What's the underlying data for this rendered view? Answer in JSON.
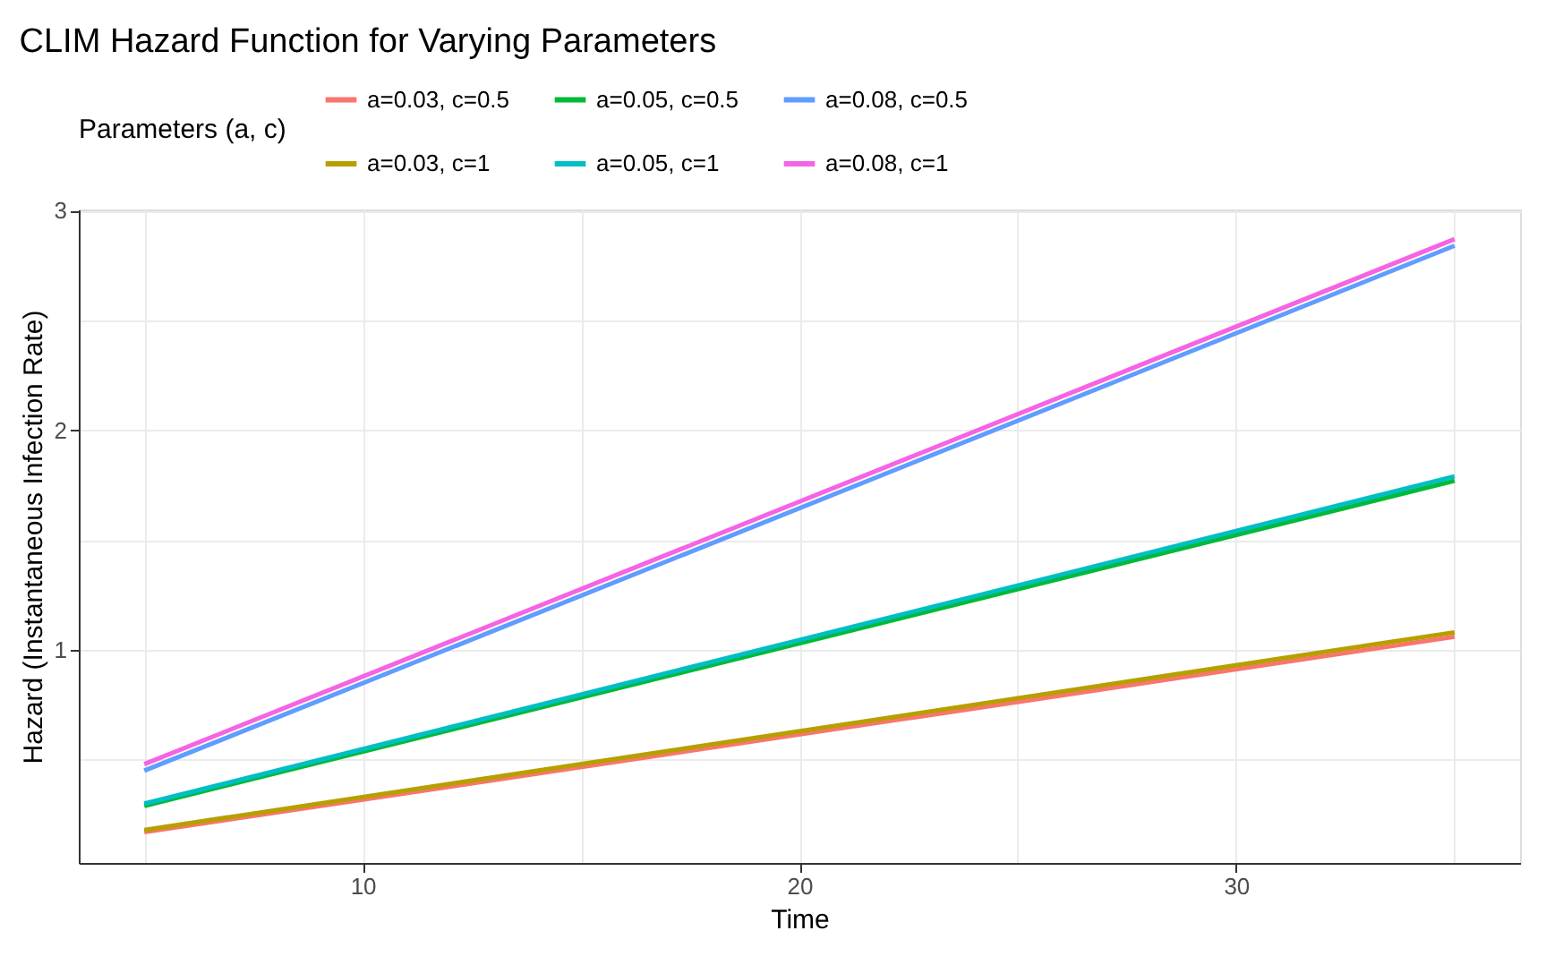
{
  "chart_data": {
    "type": "line",
    "title": "CLIM Hazard Function for Varying Parameters",
    "xlabel": "Time",
    "ylabel": "Hazard (Instantaneous Infection Rate)",
    "legend_title": "Parameters (a, c)",
    "legend": "top",
    "x": [
      5,
      35
    ],
    "series": [
      {
        "name": "a=0.03, c=0.5",
        "color": "#f8766d",
        "values": [
          0.17,
          1.06
        ]
      },
      {
        "name": "a=0.05, c=0.5",
        "color": "#00ba38",
        "values": [
          0.29,
          1.77
        ]
      },
      {
        "name": "a=0.08, c=0.5",
        "color": "#619cff",
        "values": [
          0.45,
          2.84
        ]
      },
      {
        "name": "a=0.03, c=1",
        "color": "#b79f00",
        "values": [
          0.18,
          1.08
        ]
      },
      {
        "name": "a=0.05, c=1",
        "color": "#00bfc4",
        "values": [
          0.3,
          1.79
        ]
      },
      {
        "name": "a=0.08, c=1",
        "color": "#f564e3",
        "values": [
          0.48,
          2.87
        ]
      }
    ],
    "xlim": [
      3.5,
      36.5
    ],
    "ylim": [
      0.03,
      3.005
    ],
    "xticks": [
      {
        "value": 5,
        "label": null
      },
      10,
      {
        "value": 15,
        "label": null
      },
      20,
      {
        "value": 25,
        "label": null
      },
      30,
      {
        "value": 35,
        "label": null
      }
    ],
    "yticks": [
      {
        "value": 0.5,
        "label": null
      },
      1,
      {
        "value": 1.5,
        "label": null
      },
      2,
      {
        "value": 2.5,
        "label": null
      },
      3
    ],
    "grid": true,
    "marker": "none",
    "line_style": "solid"
  }
}
